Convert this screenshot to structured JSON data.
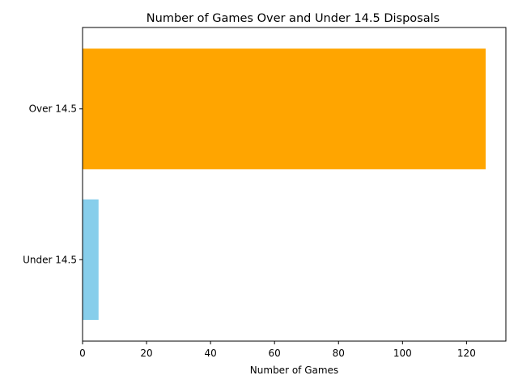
{
  "chart_data": {
    "type": "bar",
    "orientation": "horizontal",
    "title": "Number of Games Over and Under 14.5 Disposals",
    "xlabel": "Number of Games",
    "ylabel": "",
    "categories": [
      "Under 14.5",
      "Over 14.5"
    ],
    "values": [
      5,
      126
    ],
    "colors": [
      "#87CEEB",
      "#FFA500"
    ],
    "xlim": [
      0,
      132.3
    ],
    "xticks": [
      0,
      20,
      40,
      60,
      80,
      100,
      120
    ],
    "grid": false,
    "legend": "none"
  }
}
